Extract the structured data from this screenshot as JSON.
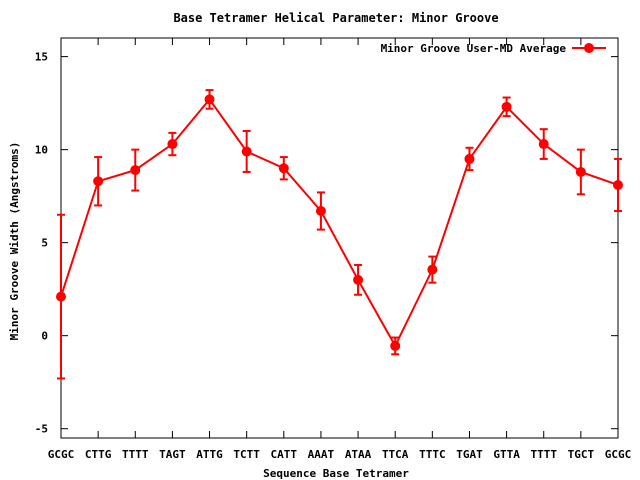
{
  "chart_data": {
    "type": "line",
    "title": "Base Tetramer Helical Parameter: Minor Groove",
    "xlabel": "Sequence Base Tetramer",
    "ylabel": "Minor Groove Width (Angstroms)",
    "categories": [
      "GCGC",
      "CTTG",
      "TTTT",
      "TAGT",
      "ATTG",
      "TCTT",
      "CATT",
      "AAAT",
      "ATAA",
      "TTCA",
      "TTTC",
      "TGAT",
      "GTTA",
      "TTTT",
      "TGCT",
      "GCGC"
    ],
    "ylim": [
      -5.5,
      16
    ],
    "yticks": [
      -5,
      0,
      5,
      10,
      15
    ],
    "grid": false,
    "legend_position": "top-right",
    "series": [
      {
        "name": "Minor Groove User-MD Average",
        "color": "#ff0000",
        "values": [
          2.1,
          8.3,
          8.9,
          10.3,
          12.7,
          9.9,
          9.0,
          6.7,
          3.0,
          -0.55,
          3.55,
          9.5,
          12.3,
          10.3,
          8.8,
          8.1
        ],
        "error": [
          4.4,
          1.3,
          1.1,
          0.6,
          0.5,
          1.1,
          0.6,
          1.0,
          0.8,
          0.45,
          0.7,
          0.6,
          0.5,
          0.8,
          1.2,
          1.4
        ]
      }
    ]
  }
}
